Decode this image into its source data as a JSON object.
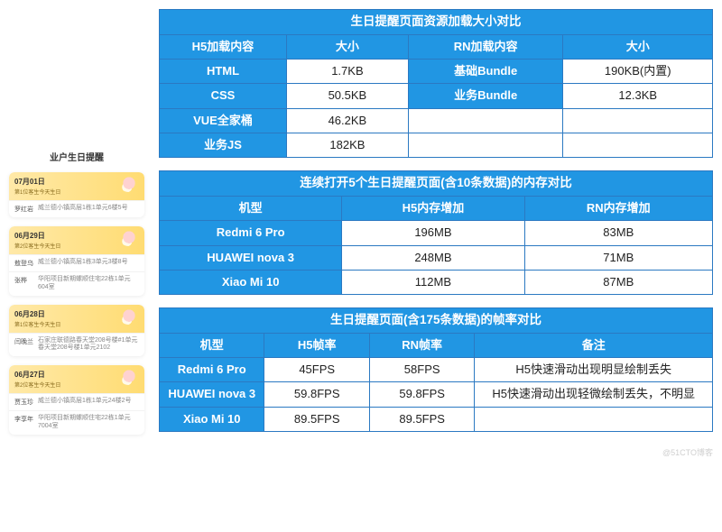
{
  "phone": {
    "title": "业户生日提醒",
    "cards": [
      {
        "date": "07月01日",
        "sub": "第1位客生今天生日",
        "rows": [
          {
            "name": "罗红岩",
            "addr": "威兰德小镇高层1栋1单元6楼5号"
          }
        ]
      },
      {
        "date": "06月29日",
        "sub": "第2位客生今天生日",
        "rows": [
          {
            "name": "敖登乌",
            "addr": "威兰德小镇高层1栋3单元3楼8号"
          },
          {
            "name": "张桦",
            "addr": "华阳项目新期螺顺住宅22栋1单元604室"
          }
        ]
      },
      {
        "date": "06月28日",
        "sub": "第1位客生今天生日",
        "rows": [
          {
            "name": "闫晚兰",
            "addr": "石家庄联德路春天堂208号楼#1单元春天堂208号楼1单元2102"
          }
        ]
      },
      {
        "date": "06月27日",
        "sub": "第2位客生今天生日",
        "rows": [
          {
            "name": "贾玉珍",
            "addr": "威兰德小镇高层1栋1单元24楼2号"
          },
          {
            "name": "李享年",
            "addr": "华阳项目新期螺顺住宅22栋1单元7004室"
          }
        ]
      }
    ]
  },
  "table1": {
    "title": "生日提醒页面资源加载大小对比",
    "headers": [
      "H5加载内容",
      "大小",
      "RN加载内容",
      "大小"
    ],
    "rows": [
      [
        "HTML",
        "1.7KB",
        "基础Bundle",
        "190KB(内置)"
      ],
      [
        "CSS",
        "50.5KB",
        "业务Bundle",
        "12.3KB"
      ],
      [
        "VUE全家桶",
        "46.2KB",
        "",
        ""
      ],
      [
        "业务JS",
        "182KB",
        "",
        ""
      ]
    ],
    "col_widths": [
      "23%",
      "22%",
      "28%",
      "27%"
    ]
  },
  "table2": {
    "title": "连续打开5个生日提醒页面(含10条数据)的内存对比",
    "headers": [
      "机型",
      "H5内存增加",
      "RN内存增加"
    ],
    "rows": [
      [
        "Redmi 6 Pro",
        "196MB",
        "83MB"
      ],
      [
        "HUAWEI nova 3",
        "248MB",
        "71MB"
      ],
      [
        "Xiao Mi 10",
        "112MB",
        "87MB"
      ]
    ],
    "col_widths": [
      "33%",
      "33%",
      "34%"
    ]
  },
  "table3": {
    "title": "生日提醒页面(含175条数据)的帧率对比",
    "headers": [
      "机型",
      "H5帧率",
      "RN帧率",
      "备注"
    ],
    "rows": [
      [
        "Redmi 6 Pro",
        "45FPS",
        "58FPS",
        "H5快速滑动出现明显绘制丢失"
      ],
      [
        "HUAWEI nova 3",
        "59.8FPS",
        "59.8FPS",
        "H5快速滑动出现轻微绘制丢失，不明显"
      ],
      [
        "Xiao Mi 10",
        "89.5FPS",
        "89.5FPS",
        ""
      ]
    ],
    "col_widths": [
      "19%",
      "19%",
      "19%",
      "43%"
    ]
  },
  "watermark": "@51CTO博客",
  "colors": {
    "brand": "#2196e3",
    "border": "#2b79c2",
    "card_head_from": "#ffe9a8",
    "card_head_to": "#ffdc72"
  }
}
